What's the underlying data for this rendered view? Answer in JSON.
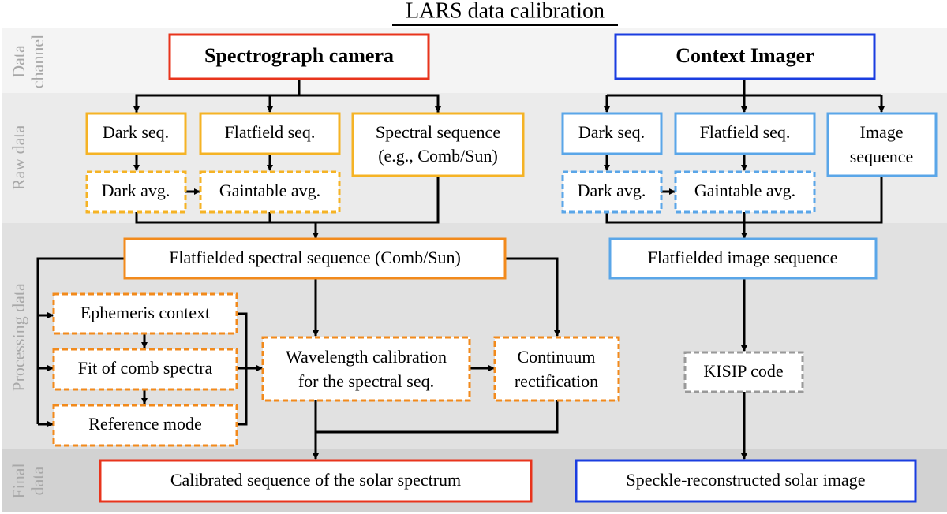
{
  "title": "LARS data calibration",
  "bands": {
    "data_channel": [
      "Data",
      "channel"
    ],
    "raw_data": "Raw data",
    "processing_data": "Processing data",
    "final_data": [
      "Final",
      "data"
    ]
  },
  "colors": {
    "spectrograph_main": "#e8341c",
    "spectrograph_raw": "#f5b325",
    "spectrograph_processing": "#f28a1c",
    "imager_main": "#1a3de0",
    "imager_light": "#5aa6e8",
    "kisip": "#999999"
  },
  "spectrograph": {
    "channel": "Spectrograph camera",
    "dark_seq": "Dark seq.",
    "flatfield_seq": "Flatfield seq.",
    "spectral_seq": [
      "Spectral sequence",
      "(e.g., Comb/Sun)"
    ],
    "dark_avg": "Dark avg.",
    "gaintable_avg": "Gaintable avg.",
    "flatfielded": "Flatfielded spectral sequence (Comb/Sun)",
    "ephemeris": "Ephemeris context",
    "fit_comb": "Fit of comb spectra",
    "reference_mode": "Reference mode",
    "wavelength_cal": [
      "Wavelength calibration",
      "for the spectral seq."
    ],
    "continuum": [
      "Continuum",
      "rectification"
    ],
    "final": "Calibrated sequence of the solar spectrum"
  },
  "imager": {
    "channel": "Context Imager",
    "dark_seq": "Dark seq.",
    "flatfield_seq": "Flatfield seq.",
    "image_seq": [
      "Image",
      "sequence"
    ],
    "dark_avg": "Dark avg.",
    "gaintable_avg": "Gaintable avg.",
    "flatfielded": "Flatfielded image sequence",
    "kisip": "KISIP code",
    "final": "Speckle-reconstructed solar image"
  }
}
